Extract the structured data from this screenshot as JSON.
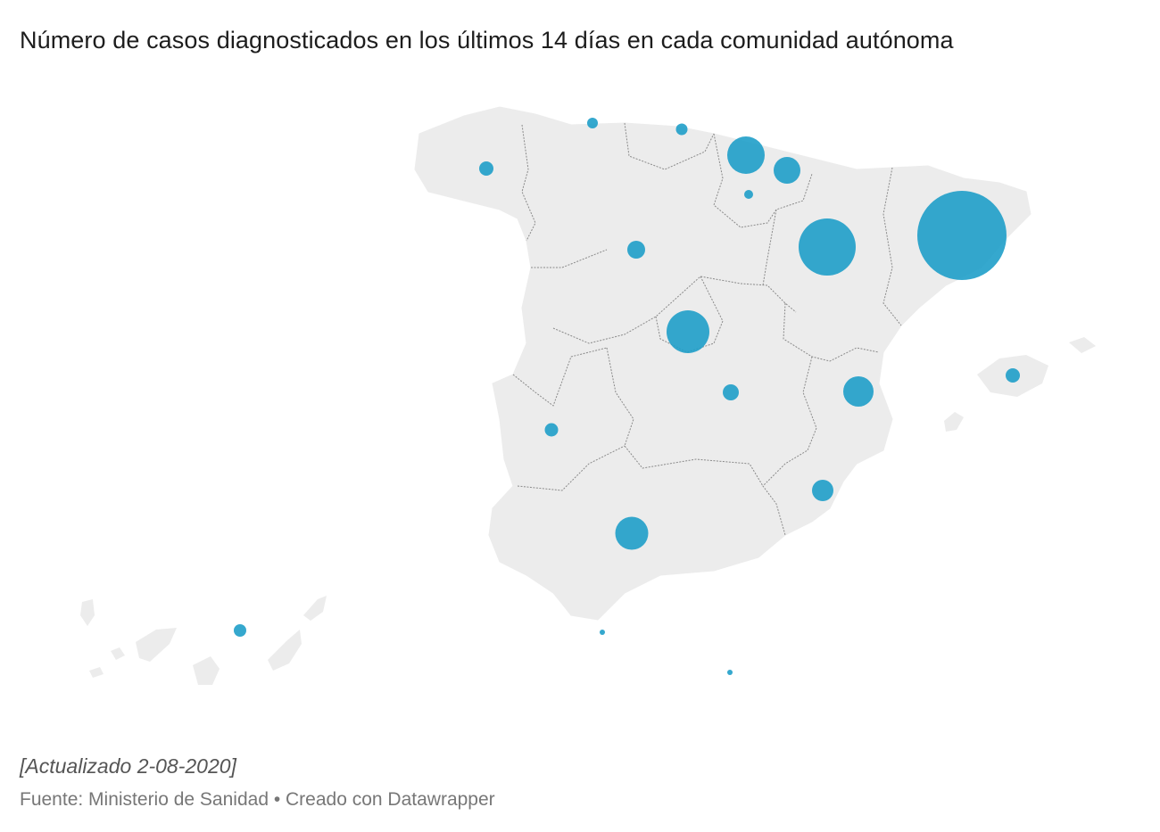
{
  "header": {
    "title": "Número de casos diagnosticados en los últimos 14 días en cada comunidad autónoma"
  },
  "footer": {
    "note": "[Actualizado 2-08-2020]",
    "source": "Fuente: Ministerio de Sanidad • Creado con Datawrapper"
  },
  "colors": {
    "bubble": "#1f9ec9",
    "land": "#ececec",
    "border": "#8a8a8a"
  }
}
